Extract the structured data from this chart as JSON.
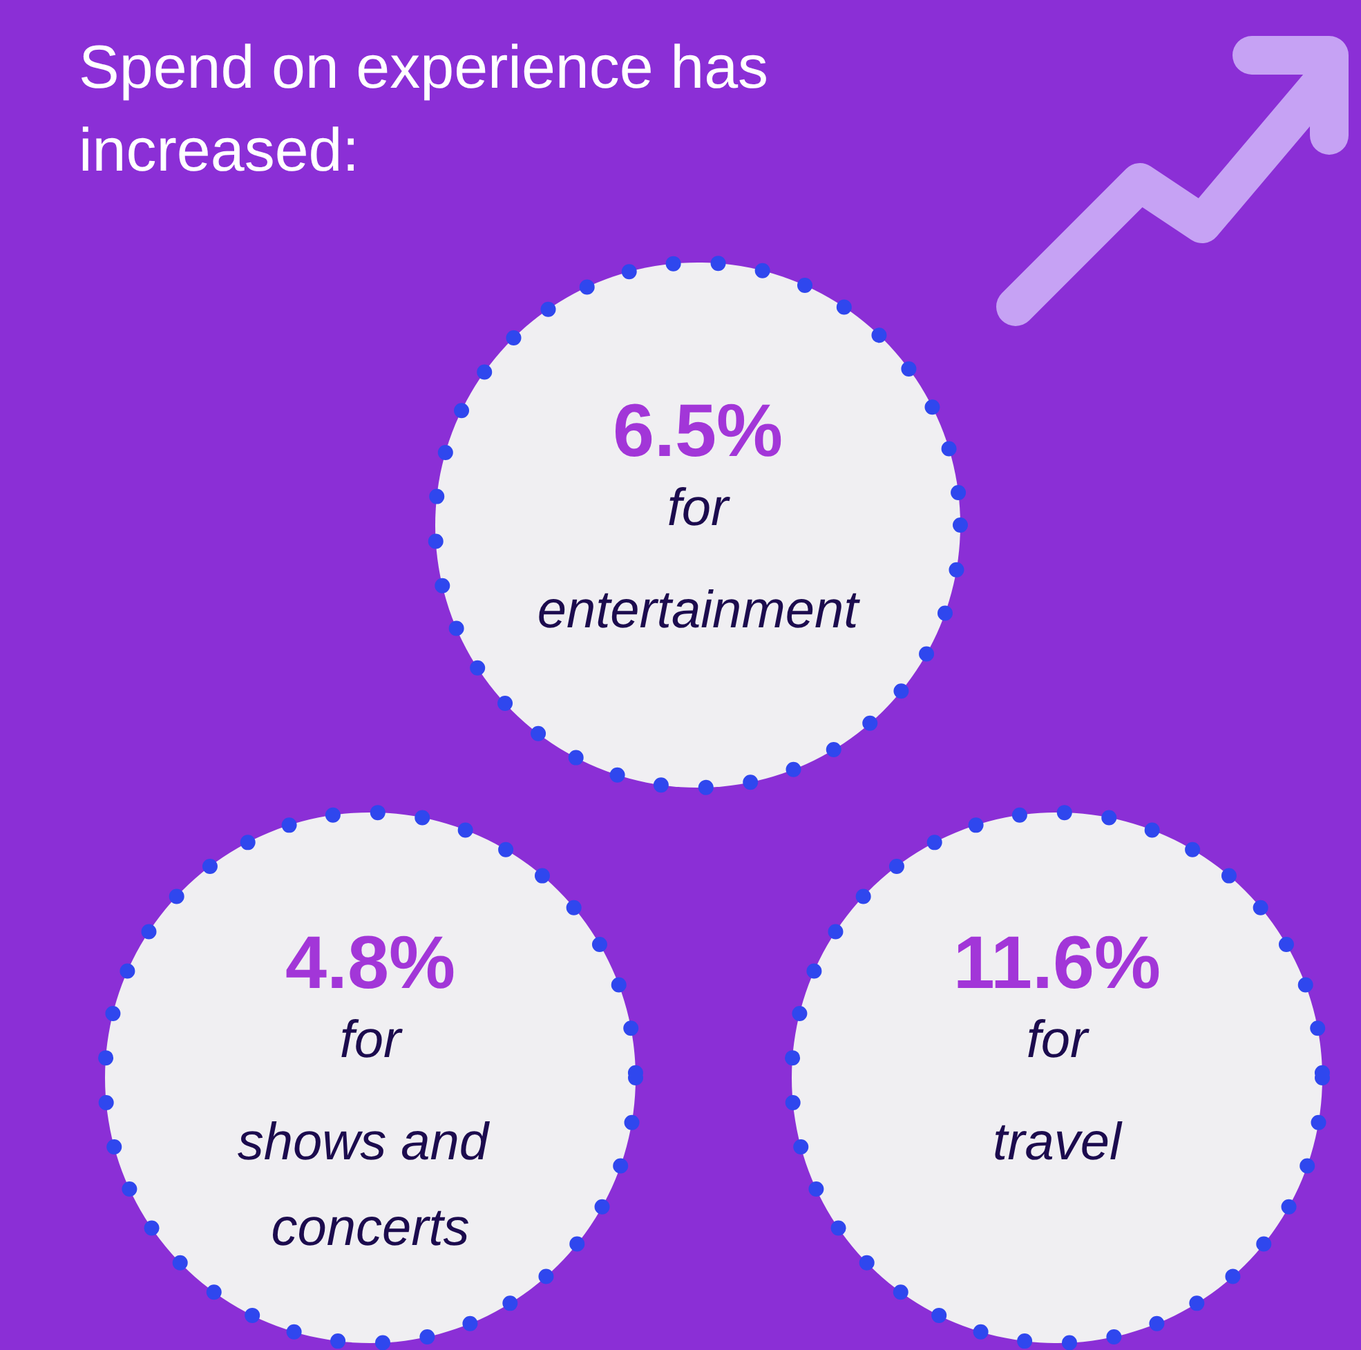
{
  "chart_data": {
    "type": "other",
    "title": "Spend on experience has increased:",
    "categories": [
      "for entertainment",
      "for shows and concerts",
      "for travel"
    ],
    "values": [
      6.5,
      4.8,
      11.6
    ],
    "value_labels": [
      "6.5%",
      "4.8%",
      "11.6%"
    ]
  }
}
